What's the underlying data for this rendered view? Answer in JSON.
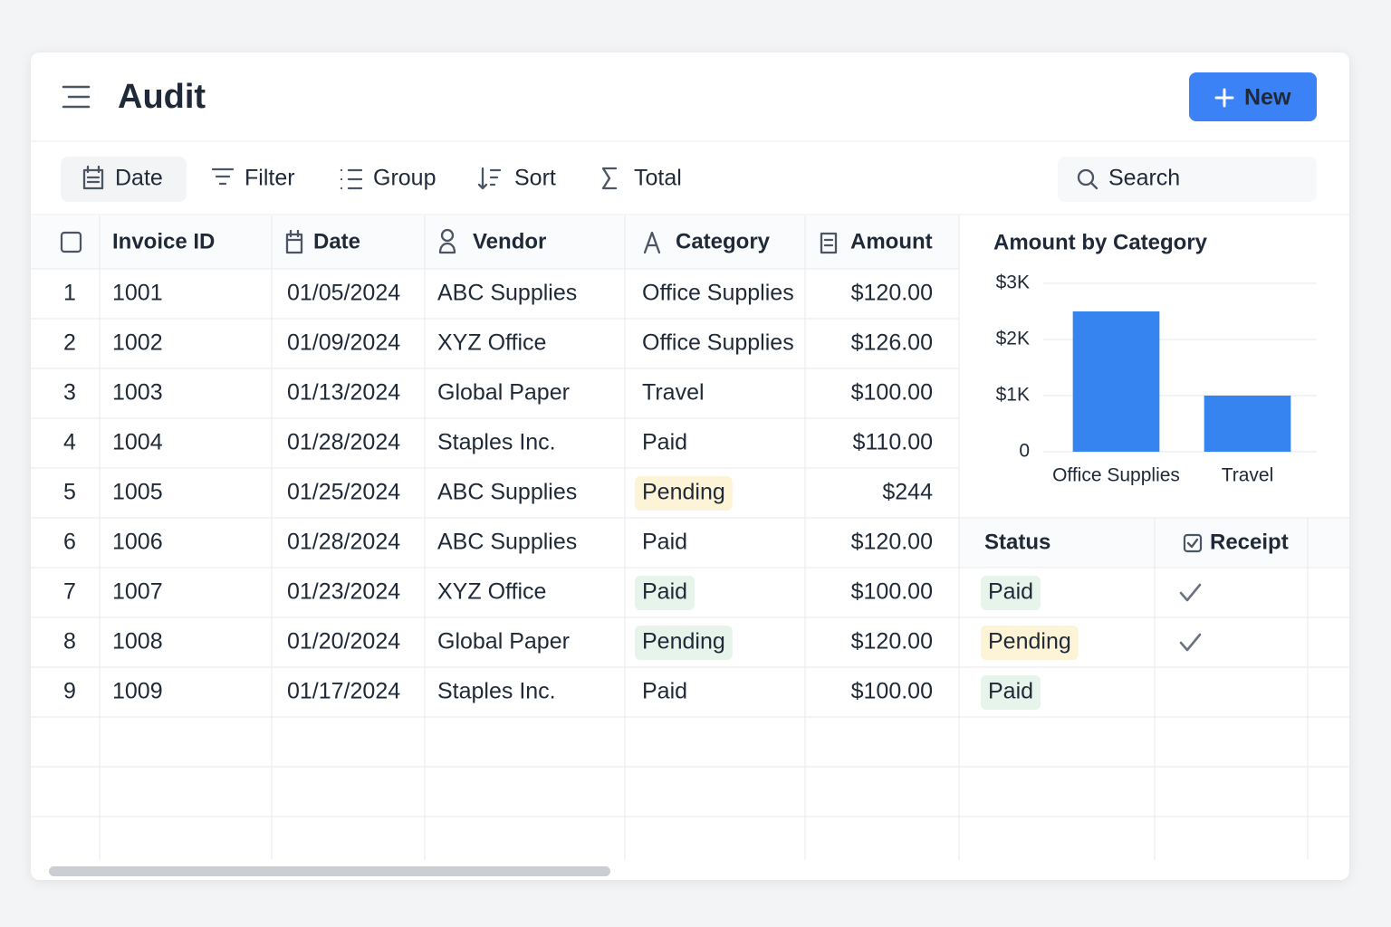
{
  "header": {
    "title": "Audit",
    "new_button": "New"
  },
  "toolbar": {
    "items": [
      "Date",
      "Filter",
      "Group",
      "Sort",
      "Total"
    ],
    "search": "Search"
  },
  "table": {
    "columns": [
      "Invoice ID",
      "Date",
      "Vendor",
      "Category",
      "Amount"
    ],
    "rows": [
      [
        "1",
        "1001",
        "01/05/2024",
        "ABC Supplies",
        "Office Supplies",
        "$120.00"
      ],
      [
        "2",
        "1002",
        "01/09/2024",
        "XYZ Office",
        "Office Supplies",
        "$126.00"
      ],
      [
        "3",
        "1003",
        "01/13/2024",
        "Global Paper",
        "Travel",
        "$100.00"
      ],
      [
        "4",
        "1004",
        "01/28/2024",
        "Staples Inc.",
        "Paid",
        "$110.00"
      ],
      [
        "5",
        "1005",
        "01/25/2024",
        "ABC Supplies",
        {
          "text": "Pending",
          "background": "#fdf3d6",
          "color": "#a16207"
        },
        "$244"
      ],
      [
        "6",
        "1006",
        "01/28/2024",
        "ABC Supplies",
        "Paid",
        "$120.00"
      ],
      [
        "7",
        "1007",
        "01/23/2024",
        "XYZ Office",
        {
          "text": "Paid",
          "background": "#e6f4ec",
          "color": "#14532d"
        },
        "$100.00"
      ],
      [
        "8",
        "1008",
        "01/20/2024",
        "Global Paper",
        {
          "text": "Pending",
          "background": "#e6f4ec",
          "color": "#14532d"
        },
        "$120.00"
      ],
      [
        "9",
        "1009",
        "01/17/2024",
        "Staples Inc.",
        "Paid",
        "$100.00"
      ]
    ]
  },
  "status_table": {
    "columns": [
      "Status",
      "Receipt"
    ],
    "status": [
      {
        "text": "Paid",
        "background": "#e6f4ec",
        "color": "#14532d"
      },
      {
        "text": "Pending",
        "background": "#fdf3d6",
        "color": "#a16207"
      },
      {
        "text": "Paid",
        "background": "#e6f4ec",
        "color": "#14532d"
      }
    ],
    "receipt": [
      true,
      true,
      false
    ]
  },
  "chart_data": {
    "type": "bar",
    "title": "Amount by Category",
    "categories": [
      "Office Supplies",
      "Travel"
    ],
    "values": [
      2500,
      1000
    ],
    "color": "#3584f0",
    "ylim": [
      0,
      3000
    ],
    "yticks": [
      0,
      {
        "value": 1000,
        "label": "$1K"
      },
      {
        "value": 2000,
        "label": "$2K"
      },
      {
        "value": 3000,
        "label": "$3K"
      }
    ],
    "grid": true
  }
}
